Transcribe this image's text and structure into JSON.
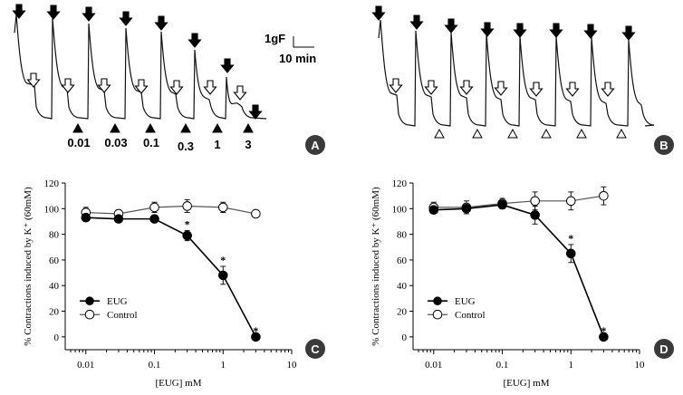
{
  "panels": {
    "A": {
      "label": "A",
      "concentrations": [
        "0.01",
        "0.03",
        "0.1",
        "0.3",
        "1",
        "3"
      ]
    },
    "B": {
      "label": "B"
    },
    "C": {
      "label": "C"
    },
    "D": {
      "label": "D"
    }
  },
  "scale_bar": {
    "force": "1gF",
    "time": "10 min"
  },
  "chart_data": [
    {
      "panel": "C",
      "type": "line",
      "xscale": "log",
      "xlabel": "[EUG] mM",
      "ylabel": "% Contractions induced by K⁺ (60mM)",
      "xlim": [
        0.005,
        10
      ],
      "ylim": [
        -10,
        120
      ],
      "xticks": [
        0.01,
        0.1,
        1,
        10
      ],
      "xtick_labels": [
        "0.01",
        "0.1",
        "1",
        "10"
      ],
      "yticks": [
        0,
        20,
        40,
        60,
        80,
        100,
        120
      ],
      "legend": [
        "EUG",
        "Control"
      ],
      "legend_position": "bottom-left",
      "series": [
        {
          "name": "EUG",
          "marker": "filled-circle",
          "x": [
            0.01,
            0.03,
            0.1,
            0.3,
            1,
            3
          ],
          "y": [
            93,
            92,
            92,
            79,
            48,
            0
          ],
          "err": [
            2,
            2,
            2,
            4,
            7,
            0
          ],
          "significant": [
            false,
            false,
            false,
            true,
            true,
            true
          ]
        },
        {
          "name": "Control",
          "marker": "open-circle",
          "x": [
            0.01,
            0.03,
            0.1,
            0.3,
            1,
            3
          ],
          "y": [
            97,
            96,
            101,
            102,
            101,
            96
          ],
          "err": [
            4,
            3,
            4,
            5,
            4,
            2
          ]
        }
      ]
    },
    {
      "panel": "D",
      "type": "line",
      "xscale": "log",
      "xlabel": "[EUG] mM",
      "ylabel": "% Contractions induced by K⁺ (60mM)",
      "xlim": [
        0.005,
        10
      ],
      "ylim": [
        -10,
        120
      ],
      "xticks": [
        0.01,
        0.1,
        1,
        10
      ],
      "xtick_labels": [
        "0.01",
        "0.1",
        "1",
        "10"
      ],
      "yticks": [
        0,
        20,
        40,
        60,
        80,
        100,
        120
      ],
      "legend": [
        "EUG",
        "Control"
      ],
      "legend_position": "bottom-left",
      "series": [
        {
          "name": "EUG",
          "marker": "filled-circle",
          "x": [
            0.01,
            0.03,
            0.1,
            0.3,
            1,
            3
          ],
          "y": [
            99,
            100,
            103,
            95,
            65,
            0
          ],
          "err": [
            2,
            2,
            3,
            7,
            7,
            0
          ],
          "significant": [
            false,
            false,
            false,
            false,
            true,
            true
          ]
        },
        {
          "name": "Control",
          "marker": "open-circle",
          "x": [
            0.01,
            0.03,
            0.1,
            0.3,
            1,
            3
          ],
          "y": [
            101,
            101,
            104,
            106,
            106,
            110
          ],
          "err": [
            4,
            5,
            4,
            7,
            7,
            7
          ]
        }
      ]
    }
  ],
  "colors": {
    "ink": "#000000",
    "badge": "#3a3a3a",
    "control_line": "#555555"
  }
}
